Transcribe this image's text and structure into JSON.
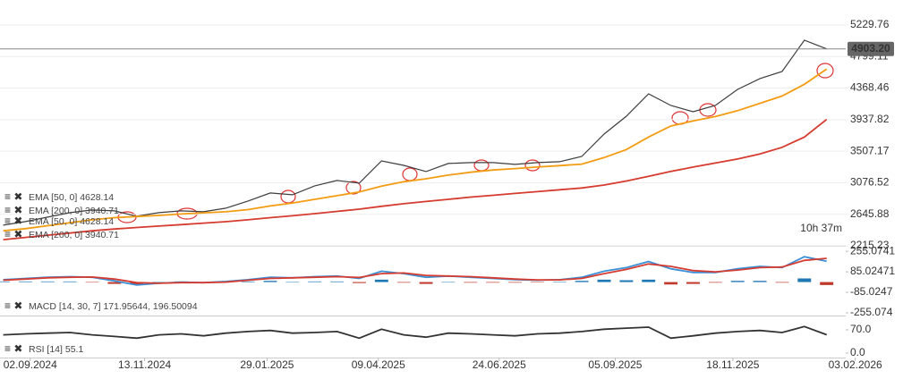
{
  "chart_data": [
    {
      "type": "line",
      "x": [
        "16.08.2024",
        "30.08.2024",
        "13.09.2024",
        "27.09.2024",
        "11.10.2024",
        "25.10.2024",
        "08.11.2024",
        "22.11.2024",
        "06.12.2024",
        "20.12.2024",
        "03.01.2025",
        "17.01.2025",
        "31.01.2025",
        "14.02.2025",
        "28.02.2025",
        "14.03.2025",
        "28.03.2025",
        "11.04.2025",
        "25.04.2025",
        "09.05.2025",
        "23.05.2025",
        "06.06.2025",
        "20.06.2025",
        "04.07.2025",
        "18.07.2025",
        "01.08.2025",
        "15.08.2025",
        "29.08.2025",
        "12.09.2025",
        "26.09.2025",
        "10.10.2025",
        "24.10.2025",
        "07.11.2025",
        "21.11.2025",
        "05.12.2025",
        "19.12.2025",
        "02.01.2026",
        "16.01.2026"
      ],
      "xlim": [
        "14.08.2024",
        "28.01.2026"
      ],
      "ylim": [
        2215.23,
        5571
      ],
      "yticks": [
        5229.76,
        4799.11,
        4368.46,
        3937.82,
        3507.17,
        3076.52,
        2645.88,
        2215.23
      ],
      "grid": true,
      "series": [
        {
          "color": "#3d3d3d",
          "values": [
            2497,
            2546,
            2607,
            2668,
            2704,
            2692,
            2619,
            2668,
            2692,
            2680,
            2729,
            2826,
            2936,
            2912,
            3034,
            3107,
            3071,
            3375,
            3314,
            3229,
            3339,
            3351,
            3351,
            3327,
            3351,
            3363,
            3436,
            3741,
            3985,
            4290,
            4131,
            4046,
            4131,
            4351,
            4498,
            4595,
            5022,
            4903.2
          ]
        },
        {
          "color": "#f39c12",
          "values": [
            2420,
            2450,
            2490,
            2530,
            2570,
            2600,
            2615,
            2630,
            2650,
            2665,
            2680,
            2710,
            2760,
            2800,
            2850,
            2900,
            2950,
            3030,
            3090,
            3130,
            3180,
            3220,
            3250,
            3270,
            3290,
            3310,
            3330,
            3420,
            3530,
            3700,
            3850,
            3920,
            3980,
            4060,
            4160,
            4260,
            4420,
            4628.14
          ]
        },
        {
          "color": "#d63b2f",
          "values": [
            2300,
            2330,
            2360,
            2390,
            2420,
            2445,
            2465,
            2485,
            2505,
            2525,
            2545,
            2570,
            2600,
            2625,
            2655,
            2685,
            2715,
            2755,
            2790,
            2820,
            2850,
            2880,
            2905,
            2930,
            2955,
            2980,
            3005,
            3045,
            3100,
            3165,
            3230,
            3290,
            3345,
            3400,
            3470,
            3560,
            3700,
            3940.71
          ]
        }
      ],
      "legend": [
        "EMA [50, 0] 4628.14",
        "EMA [200, 0] 3940.71",
        "EMA [50, 0] 4628.14",
        "EMA [200, 0] 3940.71"
      ],
      "current_price": {
        "value": 4903.2,
        "label": "4903.20"
      },
      "countdown": "10h 37m"
    },
    {
      "type": "macd",
      "x": [
        "16.08.2024",
        "30.08.2024",
        "13.09.2024",
        "27.09.2024",
        "11.10.2024",
        "25.10.2024",
        "08.11.2024",
        "22.11.2024",
        "06.12.2024",
        "20.12.2024",
        "03.01.2025",
        "17.01.2025",
        "31.01.2025",
        "14.02.2025",
        "28.02.2025",
        "14.03.2025",
        "28.03.2025",
        "11.04.2025",
        "25.04.2025",
        "09.05.2025",
        "23.05.2025",
        "06.06.2025",
        "20.06.2025",
        "04.07.2025",
        "18.07.2025",
        "01.08.2025",
        "15.08.2025",
        "29.08.2025",
        "12.09.2025",
        "26.09.2025",
        "10.10.2025",
        "24.10.2025",
        "07.11.2025",
        "21.11.2025",
        "05.12.2025",
        "19.12.2025",
        "02.01.2026",
        "16.01.2026"
      ],
      "xlim": [
        "14.08.2024",
        "28.01.2026"
      ],
      "ylim": [
        -270,
        293
      ],
      "yticks": [
        255.0741,
        85.02471,
        -85.0247,
        -255.074
      ],
      "series": [
        {
          "type": "bar",
          "color": "#1f77b4",
          "negative_color": "#c0392b",
          "values": [
            5,
            5,
            5,
            5,
            -2,
            -15,
            -20,
            0,
            5,
            0,
            5,
            5,
            10,
            0,
            5,
            5,
            -8,
            20,
            -5,
            -15,
            0,
            -5,
            -5,
            -5,
            -3,
            2,
            10,
            20,
            15,
            20,
            -20,
            -15,
            -5,
            10,
            10,
            -5,
            30,
            -24.54
          ]
        },
        {
          "type": "line",
          "color": "#3b8fd6",
          "values": [
            20,
            30,
            40,
            45,
            40,
            10,
            -25,
            -10,
            0,
            -5,
            5,
            20,
            40,
            35,
            45,
            50,
            30,
            90,
            70,
            40,
            50,
            40,
            30,
            20,
            15,
            20,
            40,
            90,
            120,
            170,
            110,
            80,
            80,
            110,
            130,
            120,
            210,
            171.96
          ]
        },
        {
          "type": "line",
          "color": "#d63b2f",
          "values": [
            15,
            25,
            35,
            40,
            42,
            25,
            -5,
            -10,
            -5,
            -5,
            0,
            15,
            30,
            35,
            40,
            45,
            38,
            70,
            75,
            55,
            50,
            45,
            35,
            25,
            18,
            18,
            30,
            70,
            105,
            150,
            130,
            95,
            85,
            100,
            120,
            125,
            180,
            196.5
          ]
        }
      ],
      "legend": [
        "MACD [14, 30, 7] 171.95644, 196.50094"
      ]
    },
    {
      "type": "line",
      "x": [
        "16.08.2024",
        "30.08.2024",
        "13.09.2024",
        "27.09.2024",
        "11.10.2024",
        "25.10.2024",
        "08.11.2024",
        "22.11.2024",
        "06.12.2024",
        "20.12.2024",
        "03.01.2025",
        "17.01.2025",
        "31.01.2025",
        "14.02.2025",
        "28.02.2025",
        "14.03.2025",
        "28.03.2025",
        "11.04.2025",
        "25.04.2025",
        "09.05.2025",
        "23.05.2025",
        "06.06.2025",
        "20.06.2025",
        "04.07.2025",
        "18.07.2025",
        "01.08.2025",
        "15.08.2025",
        "29.08.2025",
        "12.09.2025",
        "26.09.2025",
        "10.10.2025",
        "24.10.2025",
        "07.11.2025",
        "21.11.2025",
        "05.12.2025",
        "19.12.2025",
        "02.01.2026",
        "16.01.2026"
      ],
      "xlim": [
        "14.08.2024",
        "28.01.2026"
      ],
      "ylim": [
        -13.5,
        105
      ],
      "yticks": [
        {
          "value": 70,
          "label": "70.0"
        },
        {
          "value": 0,
          "label": "0.0"
        }
      ],
      "xticks": [
        "02.09.2024",
        "13.11.2024",
        "29.01.2025",
        "09.04.2025",
        "24.06.2025",
        "05.09.2025",
        "18.11.2025",
        "03.02.2026"
      ],
      "series": [
        {
          "color": "#333333",
          "values": [
            55,
            58,
            60,
            62,
            55,
            50,
            45,
            55,
            58,
            52,
            60,
            65,
            68,
            60,
            62,
            65,
            45,
            72,
            55,
            48,
            60,
            58,
            55,
            52,
            58,
            60,
            65,
            72,
            75,
            78,
            45,
            52,
            60,
            65,
            68,
            62,
            80,
            55.1
          ]
        }
      ],
      "legend": [
        "RSI [14] 55.1"
      ]
    }
  ]
}
